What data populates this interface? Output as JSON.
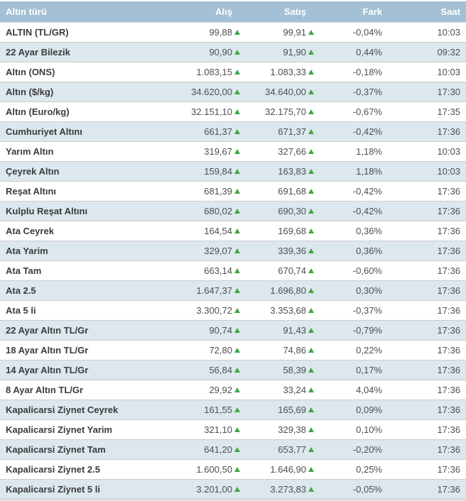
{
  "colors": {
    "header_bg": "#a3c0d5",
    "header_text": "#ffffff",
    "stripe_bg": "#dce7ee",
    "row_bg": "#ffffff",
    "border": "#cccccc",
    "label_text": "#3b3b3b",
    "value_text": "#4f4f4f",
    "trend_up": "#3fa73f"
  },
  "icons": {
    "trend_up": "green-up-triangle"
  },
  "chart_data": {
    "type": "table",
    "columns": [
      "Altın türü",
      "Alış",
      "Satış",
      "Fark",
      "Saat"
    ],
    "rows": [
      {
        "name": "ALTIN (TL/GR)",
        "alis": "99,88",
        "satis": "99,91",
        "fark": "-0,04%",
        "saat": "10:03",
        "alis_trend": "up",
        "satis_trend": "up"
      },
      {
        "name": "22 Ayar Bilezik",
        "alis": "90,90",
        "satis": "91,90",
        "fark": "0,44%",
        "saat": "09:32",
        "alis_trend": "up",
        "satis_trend": "up"
      },
      {
        "name": "Altın (ONS)",
        "alis": "1.083,15",
        "satis": "1.083,33",
        "fark": "-0,18%",
        "saat": "10:03",
        "alis_trend": "up",
        "satis_trend": "up"
      },
      {
        "name": "Altın ($/kg)",
        "alis": "34.620,00",
        "satis": "34.640,00",
        "fark": "-0,37%",
        "saat": "17:30",
        "alis_trend": "up",
        "satis_trend": "up"
      },
      {
        "name": "Altın (Euro/kg)",
        "alis": "32.151,10",
        "satis": "32.175,70",
        "fark": "-0,67%",
        "saat": "17:35",
        "alis_trend": "up",
        "satis_trend": "up"
      },
      {
        "name": "Cumhuriyet Altını",
        "alis": "661,37",
        "satis": "671,37",
        "fark": "-0,42%",
        "saat": "17:36",
        "alis_trend": "up",
        "satis_trend": "up"
      },
      {
        "name": "Yarım Altın",
        "alis": "319,67",
        "satis": "327,66",
        "fark": "1,18%",
        "saat": "10:03",
        "alis_trend": "up",
        "satis_trend": "up"
      },
      {
        "name": "Çeyrek Altın",
        "alis": "159,84",
        "satis": "163,83",
        "fark": "1,18%",
        "saat": "10:03",
        "alis_trend": "up",
        "satis_trend": "up"
      },
      {
        "name": "Reşat Altını",
        "alis": "681,39",
        "satis": "691,68",
        "fark": "-0,42%",
        "saat": "17:36",
        "alis_trend": "up",
        "satis_trend": "up"
      },
      {
        "name": "Kulplu Reşat Altını",
        "alis": "680,02",
        "satis": "690,30",
        "fark": "-0,42%",
        "saat": "17:36",
        "alis_trend": "up",
        "satis_trend": "up"
      },
      {
        "name": "Ata Ceyrek",
        "alis": "164,54",
        "satis": "169,68",
        "fark": "0,36%",
        "saat": "17:36",
        "alis_trend": "up",
        "satis_trend": "up"
      },
      {
        "name": "Ata Yarim",
        "alis": "329,07",
        "satis": "339,36",
        "fark": "0,36%",
        "saat": "17:36",
        "alis_trend": "up",
        "satis_trend": "up"
      },
      {
        "name": "Ata Tam",
        "alis": "663,14",
        "satis": "670,74",
        "fark": "-0,60%",
        "saat": "17:36",
        "alis_trend": "up",
        "satis_trend": "up"
      },
      {
        "name": "Ata 2.5",
        "alis": "1.647,37",
        "satis": "1.696,80",
        "fark": "0,30%",
        "saat": "17:36",
        "alis_trend": "up",
        "satis_trend": "up"
      },
      {
        "name": "Ata 5 li",
        "alis": "3.300,72",
        "satis": "3.353,68",
        "fark": "-0,37%",
        "saat": "17:36",
        "alis_trend": "up",
        "satis_trend": "up"
      },
      {
        "name": "22 Ayar Altın TL/Gr",
        "alis": "90,74",
        "satis": "91,43",
        "fark": "-0,79%",
        "saat": "17:36",
        "alis_trend": "up",
        "satis_trend": "up"
      },
      {
        "name": "18 Ayar Altın TL/Gr",
        "alis": "72,80",
        "satis": "74,86",
        "fark": "0,22%",
        "saat": "17:36",
        "alis_trend": "up",
        "satis_trend": "up"
      },
      {
        "name": "14 Ayar Altın TL/Gr",
        "alis": "56,84",
        "satis": "58,39",
        "fark": "0,17%",
        "saat": "17:36",
        "alis_trend": "up",
        "satis_trend": "up"
      },
      {
        "name": "8 Ayar Altın TL/Gr",
        "alis": "29,92",
        "satis": "33,24",
        "fark": "4,04%",
        "saat": "17:36",
        "alis_trend": "up",
        "satis_trend": "up"
      },
      {
        "name": "Kapalicarsi Ziynet Ceyrek",
        "alis": "161,55",
        "satis": "165,69",
        "fark": "0,09%",
        "saat": "17:36",
        "alis_trend": "up",
        "satis_trend": "up"
      },
      {
        "name": "Kapalicarsi Ziynet Yarim",
        "alis": "321,10",
        "satis": "329,38",
        "fark": "0,10%",
        "saat": "17:36",
        "alis_trend": "up",
        "satis_trend": "up"
      },
      {
        "name": "Kapalicarsi Ziynet Tam",
        "alis": "641,20",
        "satis": "653,77",
        "fark": "-0,20%",
        "saat": "17:36",
        "alis_trend": "up",
        "satis_trend": "up"
      },
      {
        "name": "Kapalicarsi Ziynet 2.5",
        "alis": "1.600,50",
        "satis": "1.646,90",
        "fark": "0,25%",
        "saat": "17:36",
        "alis_trend": "up",
        "satis_trend": "up"
      },
      {
        "name": "Kapalicarsi Ziynet 5 li",
        "alis": "3.201,00",
        "satis": "3.273,83",
        "fark": "-0,05%",
        "saat": "17:36",
        "alis_trend": "up",
        "satis_trend": "up"
      }
    ]
  }
}
